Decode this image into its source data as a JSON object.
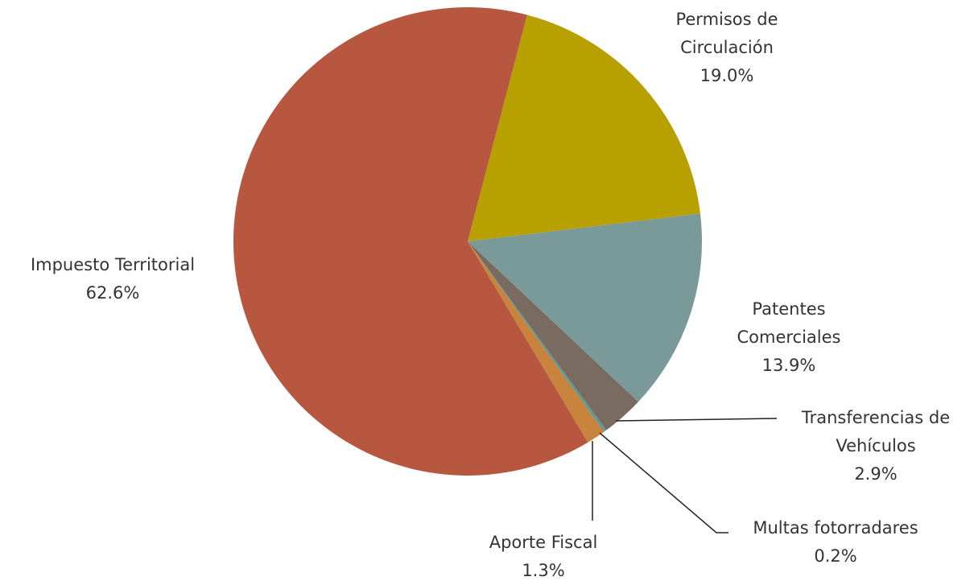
{
  "chart_data": {
    "type": "pie",
    "categories": [
      "Permisos de Circulación",
      "Patentes Comerciales",
      "Transferencias de Vehículos",
      "Multas fotorradares",
      "Aporte Fiscal",
      "Impuesto Territorial"
    ],
    "values": [
      19.0,
      13.9,
      2.9,
      0.2,
      1.3,
      62.6
    ],
    "value_labels": [
      "19.0%",
      "13.9%",
      "2.9%",
      "0.2%",
      "1.3%",
      "62.6%"
    ],
    "colors": [
      "#b8a000",
      "#7a9a9a",
      "#7a6b60",
      "#5f9a9a",
      "#c8843c",
      "#b85740"
    ]
  }
}
